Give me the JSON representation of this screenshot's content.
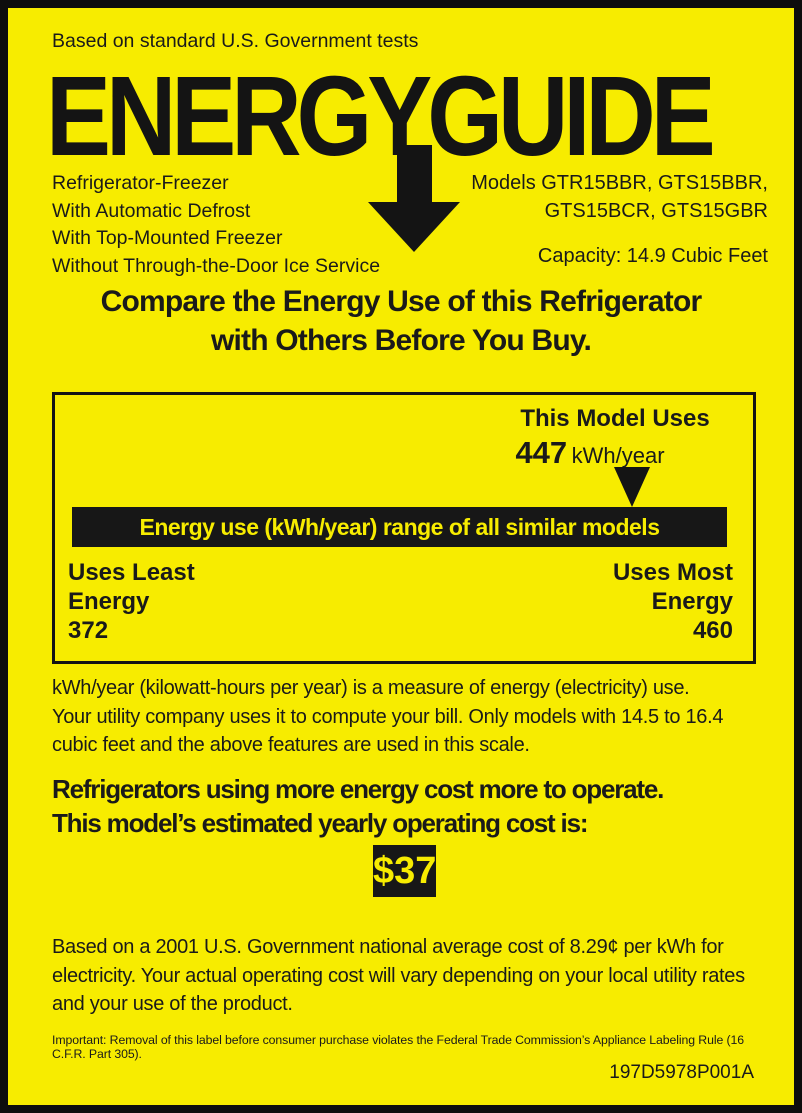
{
  "colors": {
    "background": "#f7ec00",
    "ink": "#1a1a1a",
    "bar_bg": "#171717",
    "bar_text": "#f7ec00"
  },
  "header": {
    "disclaimer": "Based on standard U.S. Government tests",
    "logo": "ENERGYGUIDE",
    "arrow_icon": "down-arrow"
  },
  "product": {
    "features": [
      "Refrigerator-Freezer",
      "With Automatic Defrost",
      "With Top-Mounted Freezer",
      "Without Through-the-Door Ice Service"
    ],
    "models_line1": "Models GTR15BBR, GTS15BBR,",
    "models_line2": "GTS15BCR, GTS15GBR",
    "capacity": "Capacity: 14.9 Cubic Feet"
  },
  "compare_heading": {
    "line1": "Compare the Energy Use of this Refrigerator",
    "line2": "with Others Before You Buy."
  },
  "chart": {
    "type": "range-pointer",
    "this_model_label": "This Model Uses",
    "this_model_value": "447",
    "this_model_unit": "kWh/year",
    "bar_label": "Energy use (kWh/year) range of all similar models",
    "least": {
      "label_line1": "Uses Least",
      "label_line2": "Energy",
      "value": "372"
    },
    "most": {
      "label_line1": "Uses Most",
      "label_line2": "Energy",
      "value": "460"
    }
  },
  "explain_paragraph": {
    "line1": "kWh/year (kilowatt-hours per year) is a measure of energy (electricity) use.",
    "line2": "Your utility company uses it to compute your bill. Only models with 14.5 to 16.4",
    "line3": "cubic feet and the above features are used in this scale."
  },
  "cost": {
    "heading_line1": "Refrigerators using more energy cost more to operate.",
    "heading_line2": "This model’s estimated yearly operating cost is:",
    "value": "$37",
    "para_line1": "Based on a 2001 U.S. Government national average cost of 8.29¢ per kWh for",
    "para_line2": "electricity. Your actual operating cost will vary depending on your local utility rates",
    "para_line3": "and your use of the product."
  },
  "footer": {
    "fine_print": "Important: Removal of this label before consumer purchase violates the Federal Trade Commission’s Appliance Labeling Rule  (16 C.F.R. Part 305).",
    "part_number": "197D5978P001A"
  }
}
